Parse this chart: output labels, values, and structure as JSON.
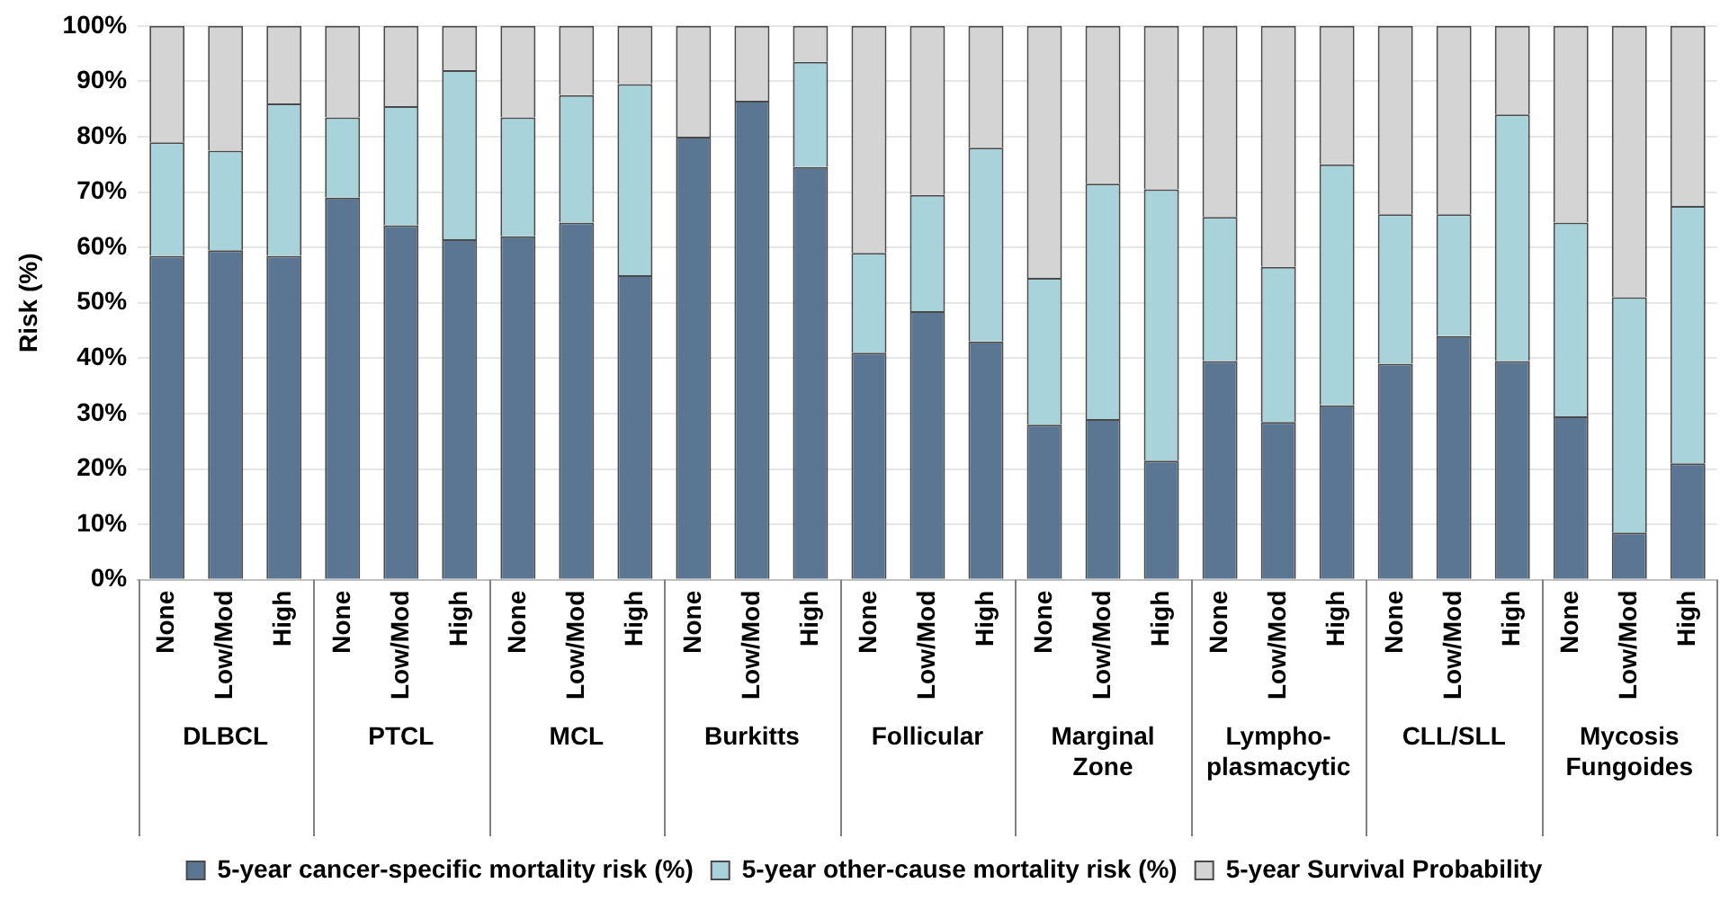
{
  "chart_data": {
    "type": "bar",
    "stacked": true,
    "ylabel": "Risk (%)",
    "categories": [
      "None",
      "Low/Mod",
      "High",
      "None",
      "Low/Mod",
      "High",
      "None",
      "Low/Mod",
      "High",
      "None",
      "Low/Mod",
      "High",
      "None",
      "Low/Mod",
      "High",
      "None",
      "Low/Mod",
      "High",
      "None",
      "Low/Mod",
      "High",
      "None",
      "Low/Mod",
      "High",
      "None",
      "Low/Mod",
      "High"
    ],
    "series": [
      {
        "name": "5-year cancer-specific mortality risk (%)",
        "color": "#5b7693",
        "values": [
          58.5,
          59.5,
          58.5,
          69,
          64,
          61.5,
          62,
          64.5,
          55,
          80,
          86.5,
          74.5,
          41,
          48.5,
          43,
          28,
          29,
          21.5,
          39.5,
          28.5,
          31.5,
          39,
          44,
          39.5,
          29.5,
          8.5,
          21
        ]
      },
      {
        "name": "5-year other-cause mortality risk (%)",
        "color": "#a8d3db",
        "values": [
          20.5,
          18,
          27.5,
          14.5,
          21.5,
          30.5,
          21.5,
          23,
          34.5,
          0,
          0,
          19,
          18,
          21,
          35,
          26.5,
          42.5,
          49,
          26,
          28,
          43.5,
          27,
          22,
          44.5,
          35,
          42.5,
          46.5
        ]
      },
      {
        "name": "5-year Survival Probability",
        "color": "#d4d4d4",
        "values": [
          21,
          22.5,
          14,
          16.5,
          14.5,
          8,
          16.5,
          12.5,
          10.5,
          20,
          13.5,
          6.5,
          41,
          30.5,
          22,
          45.5,
          28.5,
          29.5,
          34.5,
          43.5,
          25,
          34,
          34,
          16,
          35.5,
          49,
          32.5
        ]
      }
    ],
    "annotations": [
      "DLBCL",
      "PTCL",
      "MCL",
      "Burkitts",
      "Follicular",
      "Marginal Zone",
      "Lympho-plasmacytic",
      "CLL/SLL",
      "Mycosis Fungoides"
    ],
    "ylim": [
      0,
      100
    ],
    "yticks": [
      {
        "value": 0,
        "label": "0%"
      },
      {
        "value": 10,
        "label": "10%"
      },
      {
        "value": 20,
        "label": "20%"
      },
      {
        "value": 30,
        "label": "30%"
      },
      {
        "value": 40,
        "label": "40%"
      },
      {
        "value": 50,
        "label": "50%"
      },
      {
        "value": 60,
        "label": "60%"
      },
      {
        "value": 70,
        "label": "70%"
      },
      {
        "value": 80,
        "label": "80%"
      },
      {
        "value": 90,
        "label": "90%"
      },
      {
        "value": 100,
        "label": "100%"
      }
    ],
    "grid": "y",
    "legend": "bottom"
  }
}
